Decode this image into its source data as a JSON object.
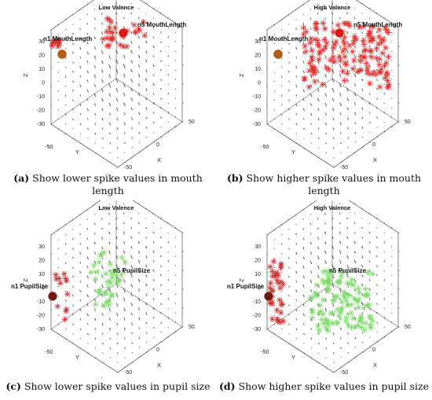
{
  "figure": {
    "panels": [
      {
        "id": "a",
        "title": "Low Valence",
        "label_n1": "n1 MouthLength",
        "label_n5": "n5 MouthLength",
        "caption_letter": "(a)",
        "caption_text": " Show lower spike values in mouth length",
        "spike_color": "#d83030",
        "marker_color": "#cc2a2a",
        "density": "low",
        "feature": "mouth"
      },
      {
        "id": "b",
        "title": "High Valence",
        "label_n1": "n1 MouthLength",
        "label_n5": "n5 MouthLength",
        "caption_letter": "(b)",
        "caption_text": " Show higher spike values in mouth length",
        "spike_color": "#e03030",
        "marker_color": "#cc2a2a",
        "density": "high",
        "feature": "mouth"
      },
      {
        "id": "c",
        "title": "Low Valence",
        "label_n1": "n1 PupilSize",
        "label_n5": "n5 PupilSize",
        "caption_letter": "(c)",
        "caption_text": " Show lower spike values in pupil size",
        "spike_color": "#7ddc6a",
        "marker_color": "#7a1414",
        "density": "low",
        "feature": "pupil"
      },
      {
        "id": "d",
        "title": "High Valence",
        "label_n1": "n1 PupilSize",
        "label_n5": "n5 PupilSize",
        "caption_letter": "(d)",
        "caption_text": " Show higher spike values in pupil size",
        "spike_color": "#7ddc6a",
        "marker_color": "#7a1414",
        "density": "high",
        "feature": "pupil"
      }
    ],
    "axes": {
      "x_label": "X",
      "y_label": "Y",
      "z_label": "Z",
      "x_ticks": [
        "-50",
        "0",
        "50"
      ],
      "y_ticks": [
        "-50",
        "0"
      ],
      "z_ticks_mouth": [
        "30",
        "20",
        "10",
        "0",
        "-10",
        "-20",
        "-30"
      ],
      "z_ticks_pupil": [
        "30",
        "20",
        "10",
        "0",
        "-10",
        "-20",
        "-30"
      ]
    }
  }
}
